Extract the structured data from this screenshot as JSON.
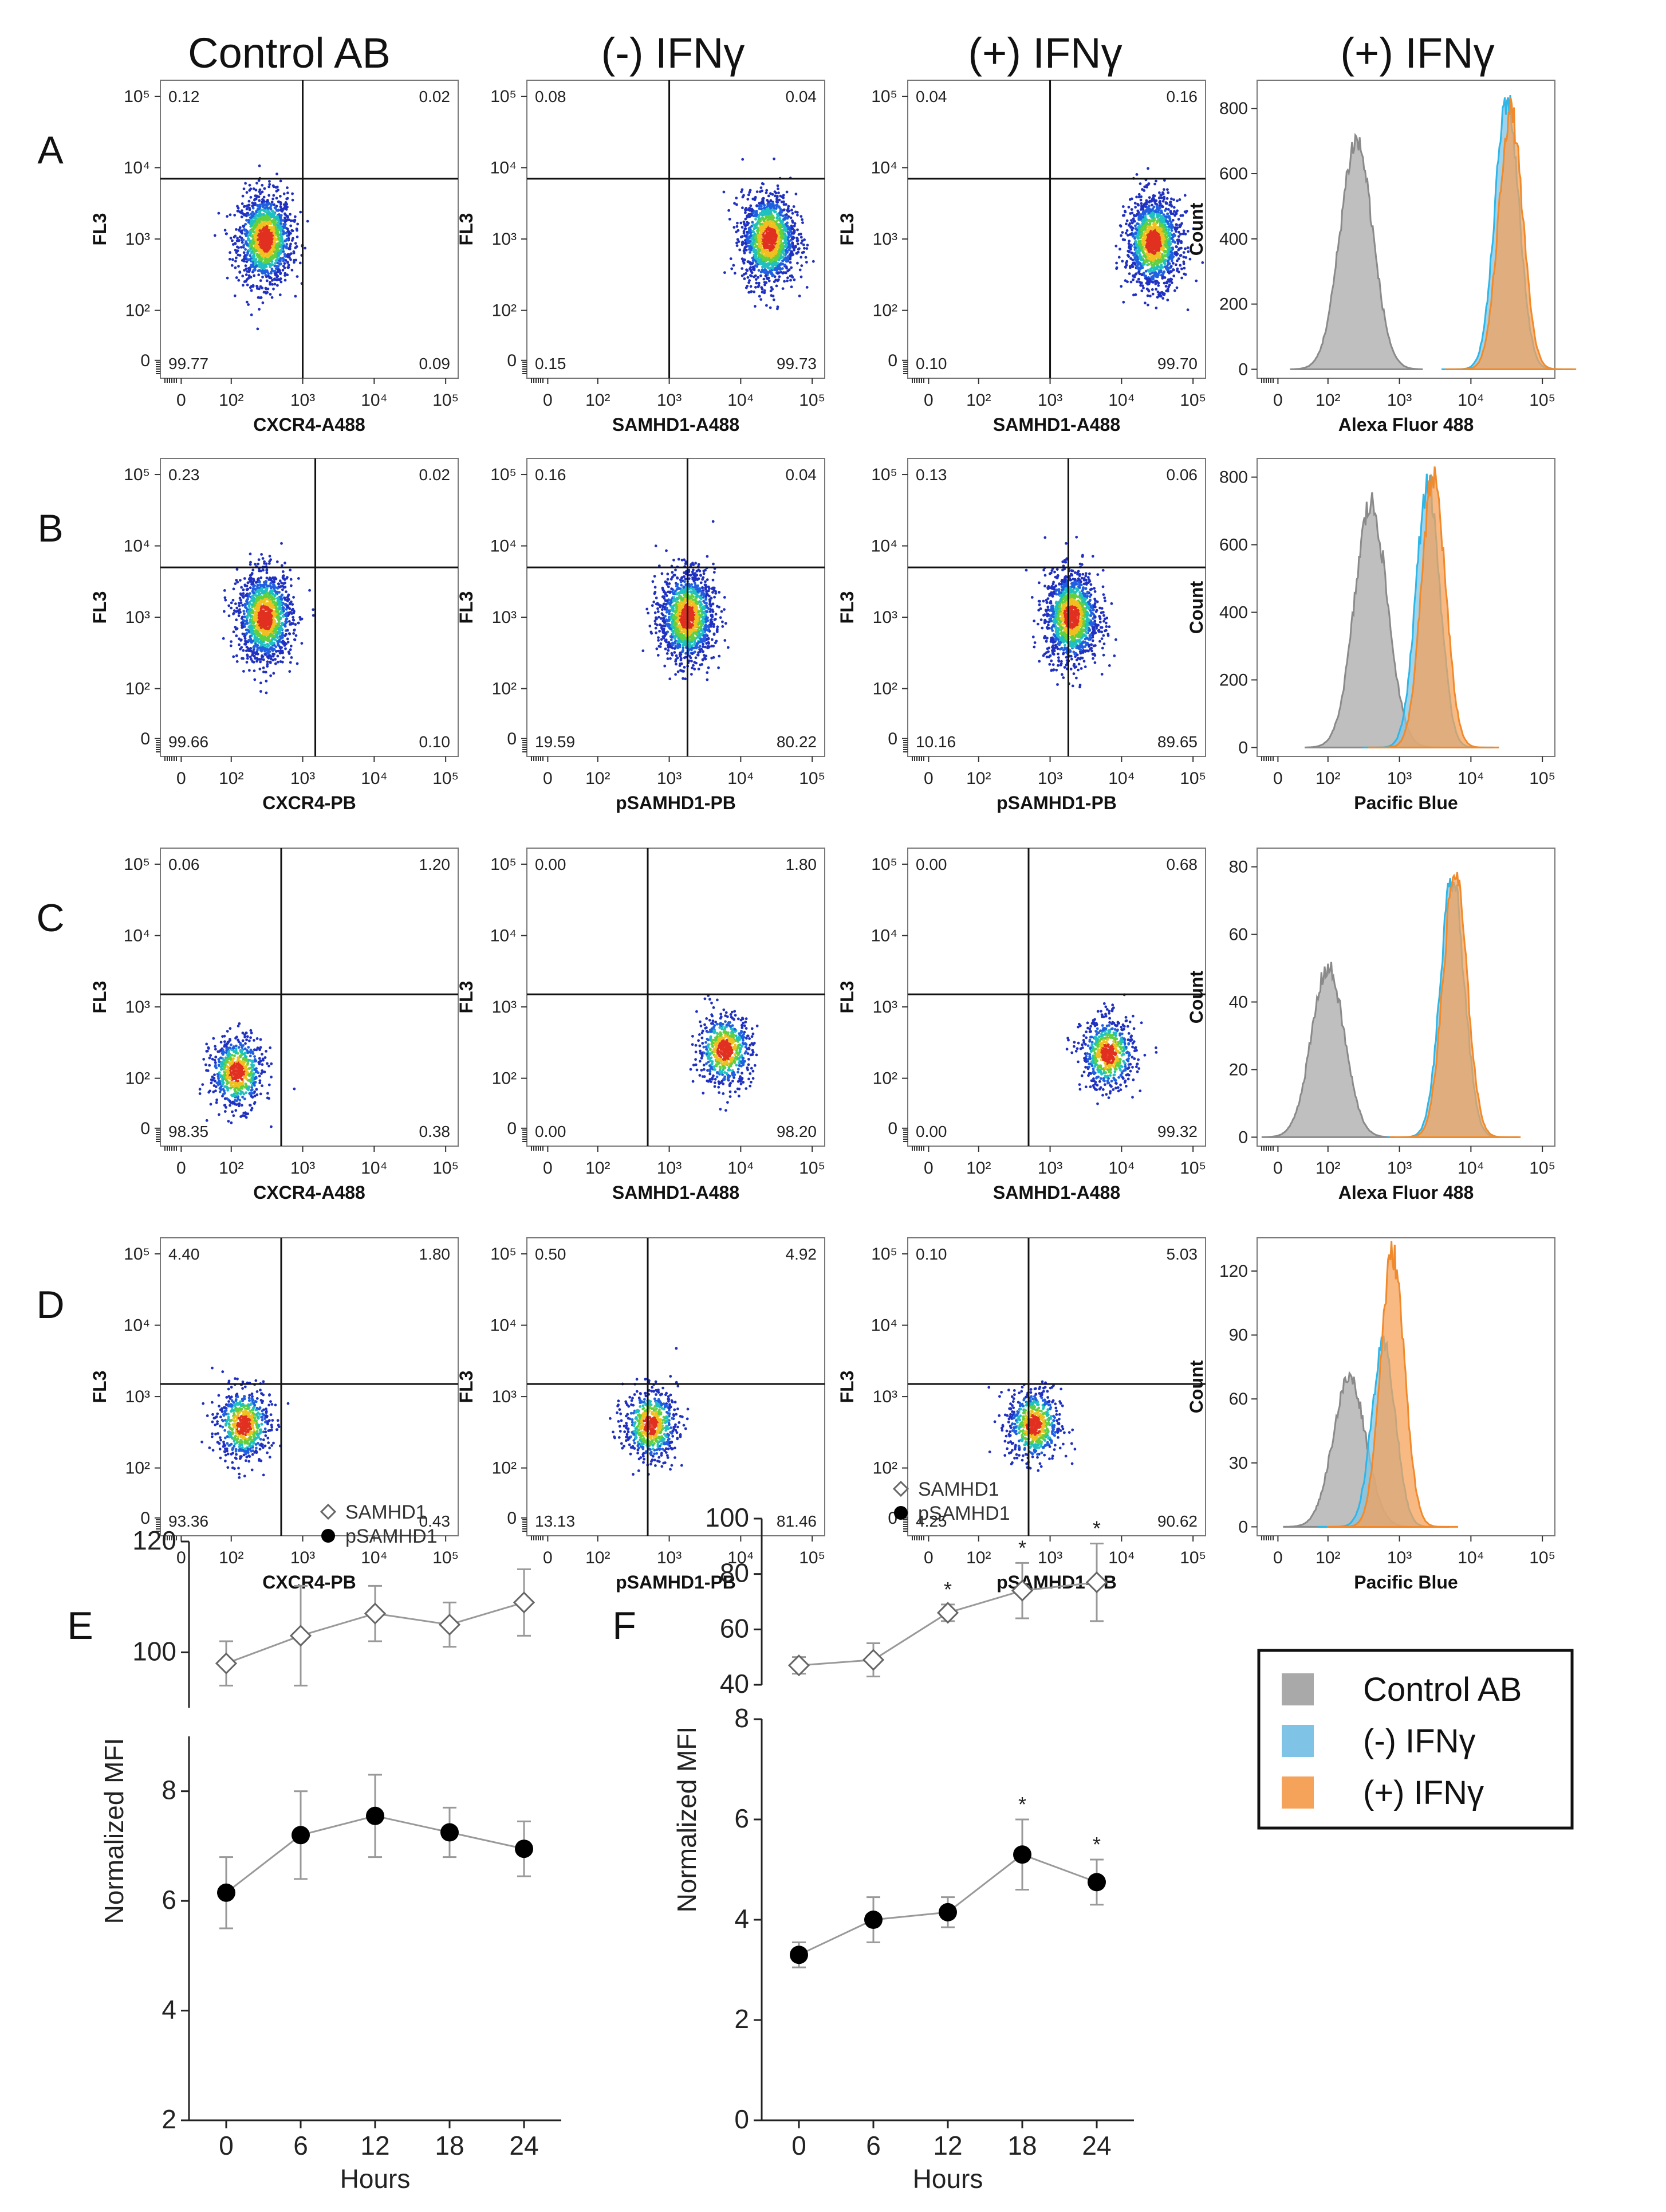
{
  "column_headers": [
    "Control AB",
    "(-) IFNγ",
    "(+) IFNγ",
    "(+) IFNγ"
  ],
  "row_labels": [
    "A",
    "B",
    "C",
    "D"
  ],
  "colors": {
    "control": "#a9a9a9",
    "minus_ifn": "#7fc4e6",
    "plus_ifn": "#f5a25a",
    "minus_line": "#2fb5e6",
    "plus_line": "#f08a2c"
  },
  "chart_data": [
    {
      "type": "scatter",
      "panel": "A",
      "column": 1,
      "title": "Control AB",
      "xlabel": "CXCR4-A488",
      "ylabel": "FL3",
      "x_ticks": [
        "0",
        "10²",
        "10³",
        "10⁴",
        "10⁵"
      ],
      "y_ticks": [
        "0",
        "10²",
        "10³",
        "10⁴",
        "10⁵"
      ],
      "quadrants": {
        "UL": "0.12",
        "UR": "0.02",
        "LL": "99.77",
        "LR": "0.09"
      },
      "gate": {
        "x": 1000,
        "y": 7000
      },
      "cluster": {
        "x": 300,
        "y": 1000
      }
    },
    {
      "type": "scatter",
      "panel": "A",
      "column": 2,
      "title": "(-) IFNγ",
      "xlabel": "SAMHD1-A488",
      "ylabel": "FL3",
      "x_ticks": [
        "0",
        "10²",
        "10³",
        "10⁴",
        "10⁵"
      ],
      "y_ticks": [
        "0",
        "10²",
        "10³",
        "10⁴",
        "10⁵"
      ],
      "quadrants": {
        "UL": "0.08",
        "UR": "0.04",
        "LL": "0.15",
        "LR": "99.73"
      },
      "gate": {
        "x": 1000,
        "y": 7000
      },
      "cluster": {
        "x": 25000,
        "y": 1000
      }
    },
    {
      "type": "scatter",
      "panel": "A",
      "column": 3,
      "title": "(+) IFNγ",
      "xlabel": "SAMHD1-A488",
      "ylabel": "FL3",
      "x_ticks": [
        "0",
        "10²",
        "10³",
        "10⁴",
        "10⁵"
      ],
      "y_ticks": [
        "0",
        "10²",
        "10³",
        "10⁴",
        "10⁵"
      ],
      "quadrants": {
        "UL": "0.04",
        "UR": "0.16",
        "LL": "0.10",
        "LR": "99.70"
      },
      "gate": {
        "x": 1000,
        "y": 7000
      },
      "cluster": {
        "x": 28000,
        "y": 900
      }
    },
    {
      "type": "histogram",
      "panel": "A",
      "column": 4,
      "xlabel": "Alexa Fluor 488",
      "ylabel": "Count",
      "x_ticks": [
        "0",
        "10²",
        "10³",
        "10⁴",
        "10⁵"
      ],
      "y_ticks": [
        "0",
        "200",
        "400",
        "600",
        "800"
      ],
      "ylim": [
        0,
        850
      ],
      "series": [
        {
          "name": "Control AB",
          "peak_x": 250,
          "peak": 700
        },
        {
          "name": "(-) IFNγ",
          "peak_x": 32000,
          "peak": 830
        },
        {
          "name": "(+) IFNγ",
          "peak_x": 36000,
          "peak": 790
        }
      ]
    },
    {
      "type": "scatter",
      "panel": "B",
      "column": 1,
      "title": "Control AB",
      "xlabel": "CXCR4-PB",
      "ylabel": "FL3",
      "x_ticks": [
        "0",
        "10²",
        "10³",
        "10⁴",
        "10⁵"
      ],
      "y_ticks": [
        "0",
        "10²",
        "10³",
        "10⁴",
        "10⁵"
      ],
      "quadrants": {
        "UL": "0.23",
        "UR": "0.02",
        "LL": "99.66",
        "LR": "0.10"
      },
      "gate": {
        "x": 1500,
        "y": 5000
      },
      "cluster": {
        "x": 300,
        "y": 1000
      }
    },
    {
      "type": "scatter",
      "panel": "B",
      "column": 2,
      "title": "(-) IFNγ",
      "xlabel": "pSAMHD1-PB",
      "ylabel": "FL3",
      "x_ticks": [
        "0",
        "10²",
        "10³",
        "10⁴",
        "10⁵"
      ],
      "y_ticks": [
        "0",
        "10²",
        "10³",
        "10⁴",
        "10⁵"
      ],
      "quadrants": {
        "UL": "0.16",
        "UR": "0.04",
        "LL": "19.59",
        "LR": "80.22"
      },
      "gate": {
        "x": 1800,
        "y": 5000
      },
      "cluster": {
        "x": 1800,
        "y": 1000
      }
    },
    {
      "type": "scatter",
      "panel": "B",
      "column": 3,
      "title": "(+) IFNγ",
      "xlabel": "pSAMHD1-PB",
      "ylabel": "FL3",
      "x_ticks": [
        "0",
        "10²",
        "10³",
        "10⁴",
        "10⁵"
      ],
      "y_ticks": [
        "0",
        "10²",
        "10³",
        "10⁴",
        "10⁵"
      ],
      "quadrants": {
        "UL": "0.13",
        "UR": "0.06",
        "LL": "10.16",
        "LR": "89.65"
      },
      "gate": {
        "x": 1800,
        "y": 5000
      },
      "cluster": {
        "x": 2000,
        "y": 1000
      }
    },
    {
      "type": "histogram",
      "panel": "B",
      "column": 4,
      "xlabel": "Pacific Blue",
      "ylabel": "Count",
      "x_ticks": [
        "0",
        "10²",
        "10³",
        "10⁴",
        "10⁵"
      ],
      "y_ticks": [
        "0",
        "200",
        "400",
        "600",
        "800"
      ],
      "ylim": [
        0,
        820
      ],
      "series": [
        {
          "name": "Control AB",
          "peak_x": 400,
          "peak": 720
        },
        {
          "name": "(-) IFNγ",
          "peak_x": 2500,
          "peak": 780
        },
        {
          "name": "(+) IFNγ",
          "peak_x": 3000,
          "peak": 800
        }
      ]
    },
    {
      "type": "scatter",
      "panel": "C",
      "column": 1,
      "title": "Control AB",
      "xlabel": "CXCR4-A488",
      "ylabel": "FL3",
      "x_ticks": [
        "0",
        "10²",
        "10³",
        "10⁴",
        "10⁵"
      ],
      "y_ticks": [
        "0",
        "10²",
        "10³",
        "10⁴",
        "10⁵"
      ],
      "quadrants": {
        "UL": "0.06",
        "UR": "1.20",
        "LL": "98.35",
        "LR": "0.38"
      },
      "gate": {
        "x": 500,
        "y": 1500
      },
      "cluster": {
        "x": 120,
        "y": 120
      }
    },
    {
      "type": "scatter",
      "panel": "C",
      "column": 2,
      "title": "(-) IFNγ",
      "xlabel": "SAMHD1-A488",
      "ylabel": "FL3",
      "x_ticks": [
        "0",
        "10²",
        "10³",
        "10⁴",
        "10⁵"
      ],
      "y_ticks": [
        "0",
        "10²",
        "10³",
        "10⁴",
        "10⁵"
      ],
      "quadrants": {
        "UL": "0.00",
        "UR": "1.80",
        "LL": "0.00",
        "LR": "98.20"
      },
      "gate": {
        "x": 500,
        "y": 1500
      },
      "cluster": {
        "x": 6000,
        "y": 250
      }
    },
    {
      "type": "scatter",
      "panel": "C",
      "column": 3,
      "title": "(+) IFNγ",
      "xlabel": "SAMHD1-A488",
      "ylabel": "FL3",
      "x_ticks": [
        "0",
        "10²",
        "10³",
        "10⁴",
        "10⁵"
      ],
      "y_ticks": [
        "0",
        "10²",
        "10³",
        "10⁴",
        "10⁵"
      ],
      "quadrants": {
        "UL": "0.00",
        "UR": "0.68",
        "LL": "0.00",
        "LR": "99.32"
      },
      "gate": {
        "x": 500,
        "y": 1500
      },
      "cluster": {
        "x": 6500,
        "y": 220
      }
    },
    {
      "type": "histogram",
      "panel": "C",
      "column": 4,
      "xlabel": "Alexa Fluor 488",
      "ylabel": "Count",
      "x_ticks": [
        "0",
        "10²",
        "10³",
        "10⁴",
        "10⁵"
      ],
      "y_ticks": [
        "0",
        "20",
        "40",
        "60",
        "80"
      ],
      "ylim": [
        0,
        82
      ],
      "series": [
        {
          "name": "Control AB",
          "peak_x": 100,
          "peak": 50
        },
        {
          "name": "(-) IFNγ",
          "peak_x": 5500,
          "peak": 76
        },
        {
          "name": "(+) IFNγ",
          "peak_x": 6000,
          "peak": 78
        }
      ]
    },
    {
      "type": "scatter",
      "panel": "D",
      "column": 1,
      "title": "Control AB",
      "xlabel": "CXCR4-PB",
      "ylabel": "FL3",
      "x_ticks": [
        "0",
        "10²",
        "10³",
        "10⁴",
        "10⁵"
      ],
      "y_ticks": [
        "0",
        "10²",
        "10³",
        "10⁴",
        "10⁵"
      ],
      "quadrants": {
        "UL": "4.40",
        "UR": "1.80",
        "LL": "93.36",
        "LR": "0.43"
      },
      "gate": {
        "x": 500,
        "y": 1500
      },
      "cluster": {
        "x": 150,
        "y": 400
      }
    },
    {
      "type": "scatter",
      "panel": "D",
      "column": 2,
      "title": "(-) IFNγ",
      "xlabel": "pSAMHD1-PB",
      "ylabel": "FL3",
      "x_ticks": [
        "0",
        "10²",
        "10³",
        "10⁴",
        "10⁵"
      ],
      "y_ticks": [
        "0",
        "10²",
        "10³",
        "10⁴",
        "10⁵"
      ],
      "quadrants": {
        "UL": "0.50",
        "UR": "4.92",
        "LL": "13.13",
        "LR": "81.46"
      },
      "gate": {
        "x": 500,
        "y": 1500
      },
      "cluster": {
        "x": 550,
        "y": 400
      }
    },
    {
      "type": "scatter",
      "panel": "D",
      "column": 3,
      "title": "(+) IFNγ",
      "xlabel": "pSAMHD1-PB",
      "ylabel": "FL3",
      "x_ticks": [
        "0",
        "10²",
        "10³",
        "10⁴",
        "10⁵"
      ],
      "y_ticks": [
        "0",
        "10²",
        "10³",
        "10⁴",
        "10⁵"
      ],
      "quadrants": {
        "UL": "0.10",
        "UR": "5.03",
        "LL": "4.25",
        "LR": "90.62"
      },
      "gate": {
        "x": 500,
        "y": 1500
      },
      "cluster": {
        "x": 600,
        "y": 400
      }
    },
    {
      "type": "histogram",
      "panel": "D",
      "column": 4,
      "xlabel": "Pacific Blue",
      "ylabel": "Count",
      "x_ticks": [
        "0",
        "10²",
        "10³",
        "10⁴",
        "10⁵"
      ],
      "y_ticks": [
        "0",
        "30",
        "60",
        "90",
        "120"
      ],
      "ylim": [
        0,
        130
      ],
      "series": [
        {
          "name": "Control AB",
          "peak_x": 200,
          "peak": 70
        },
        {
          "name": "(-) IFNγ",
          "peak_x": 600,
          "peak": 85
        },
        {
          "name": "(+) IFNγ",
          "peak_x": 800,
          "peak": 128
        }
      ]
    },
    {
      "type": "line",
      "panel": "E",
      "xlabel": "Hours",
      "ylabel": "Normalized MFI",
      "x": [
        0,
        6,
        12,
        18,
        24
      ],
      "x_ticks": [
        "0",
        "6",
        "12",
        "18",
        "24"
      ],
      "upper": {
        "ylim": [
          90,
          120
        ],
        "y_ticks": [
          "100",
          "120"
        ],
        "series": [
          {
            "name": "SAMHD1",
            "marker": "diamond-open",
            "values": [
              98,
              103,
              107,
              105,
              109
            ],
            "err": [
              4,
              9,
              5,
              4,
              6
            ]
          }
        ]
      },
      "lower": {
        "ylim": [
          2,
          9
        ],
        "y_ticks": [
          "2",
          "4",
          "6",
          "8"
        ],
        "series": [
          {
            "name": "pSAMHD1",
            "marker": "circle-filled",
            "values": [
              6.15,
              7.2,
              7.55,
              7.25,
              6.95
            ],
            "err": [
              0.65,
              0.8,
              0.75,
              0.45,
              0.5
            ]
          }
        ]
      },
      "legend": [
        "SAMHD1",
        "pSAMHD1"
      ]
    },
    {
      "type": "line",
      "panel": "F",
      "xlabel": "Hours",
      "ylabel": "Normalized MFI",
      "x": [
        0,
        6,
        12,
        18,
        24
      ],
      "x_ticks": [
        "0",
        "6",
        "12",
        "18",
        "24"
      ],
      "upper": {
        "ylim": [
          40,
          100
        ],
        "y_ticks": [
          "40",
          "60",
          "80",
          "100"
        ],
        "series": [
          {
            "name": "SAMHD1",
            "marker": "diamond-open",
            "values": [
              47,
              49,
              66,
              74,
              77
            ],
            "err": [
              3,
              6,
              3,
              10,
              14
            ],
            "significance": [
              "",
              "",
              "*",
              "*",
              "*"
            ]
          }
        ]
      },
      "lower": {
        "ylim": [
          0,
          8
        ],
        "y_ticks": [
          "0",
          "2",
          "4",
          "6",
          "8"
        ],
        "series": [
          {
            "name": "pSAMHD1",
            "marker": "circle-filled",
            "values": [
              3.3,
              4.0,
              4.15,
              5.3,
              4.75
            ],
            "err": [
              0.25,
              0.45,
              0.3,
              0.7,
              0.45
            ],
            "significance": [
              "",
              "",
              "",
              "*",
              "*"
            ]
          }
        ]
      },
      "legend": [
        "SAMHD1",
        "pSAMHD1"
      ]
    }
  ],
  "legend_key": [
    {
      "label": "Control AB",
      "color": "#a9a9a9"
    },
    {
      "label": "(-) IFNγ",
      "color": "#7fc4e6"
    },
    {
      "label": "(+) IFNγ",
      "color": "#f5a25a"
    }
  ]
}
